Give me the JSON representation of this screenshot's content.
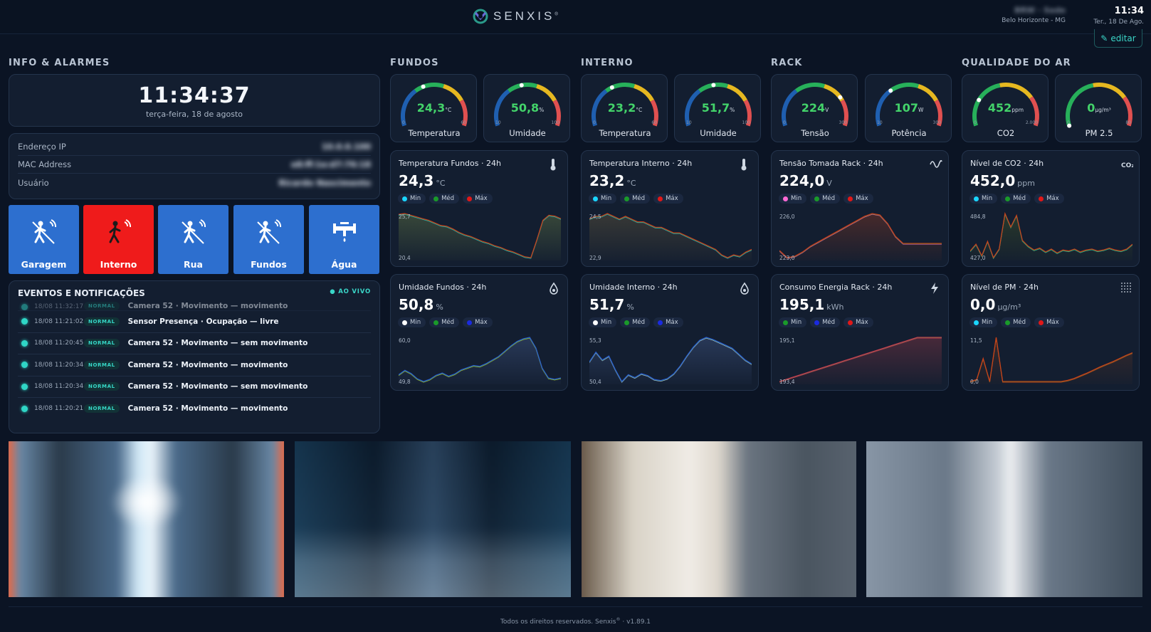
{
  "header": {
    "brand": "SENXIS",
    "brand_mark": "®",
    "site_name": "BRW - Sede",
    "site_location": "Belo Horizonte - MG",
    "time": "11:34",
    "date": "Ter., 18 De Ago.",
    "edit_label": "editar"
  },
  "sections": {
    "info": "INFO & ALARMES",
    "fundos": "FUNDOS",
    "interno": "INTERNO",
    "rack": "RACK",
    "air": "QUALIDADE DO AR"
  },
  "clock": {
    "time": "11:34:37",
    "date": "terça-feira, 18 de agosto"
  },
  "info_rows": [
    {
      "label": "Endereço IP",
      "value": "10.0.0.100"
    },
    {
      "label": "MAC Address",
      "value": "e8:ff:1e:d7:76:18"
    },
    {
      "label": "Usuário",
      "value": "Ricardo Nascimento"
    }
  ],
  "sensors": [
    {
      "label": "Garagem",
      "state": "normal",
      "icon": "motion-sensor-icon"
    },
    {
      "label": "Interno",
      "state": "alarm",
      "icon": "motion-sensor-icon"
    },
    {
      "label": "Rua",
      "state": "normal",
      "icon": "motion-sensor-icon"
    },
    {
      "label": "Fundos",
      "state": "normal",
      "icon": "motion-sensor-icon"
    },
    {
      "label": "Água",
      "state": "normal",
      "icon": "water-valve-icon"
    }
  ],
  "events": {
    "title": "EVENTOS E NOTIFICAÇÕES",
    "live": "AO VIVO",
    "items": [
      {
        "ts": "18/08 11:32:17",
        "badge": "NORMAL",
        "msg": "Camera 52 · Movimento — movimento"
      },
      {
        "ts": "18/08 11:21:02",
        "badge": "NORMAL",
        "msg": "Sensor Presença · Ocupação — livre"
      },
      {
        "ts": "18/08 11:20:45",
        "badge": "NORMAL",
        "msg": "Camera 52 · Movimento — sem movimento"
      },
      {
        "ts": "18/08 11:20:34",
        "badge": "NORMAL",
        "msg": "Camera 52 · Movimento — movimento"
      },
      {
        "ts": "18/08 11:20:34",
        "badge": "NORMAL",
        "msg": "Camera 52 · Movimento — sem movimento"
      },
      {
        "ts": "18/08 11:20:21",
        "badge": "NORMAL",
        "msg": "Camera 52 · Movimento — movimento"
      }
    ]
  },
  "gauges": [
    {
      "value": "24,3",
      "unit": "°C",
      "min": "0",
      "max": "60",
      "label": "Temperatura",
      "fraction": 0.405
    },
    {
      "value": "50,8",
      "unit": "%",
      "min": "10",
      "max": "100",
      "label": "Umidade",
      "fraction": 0.45
    },
    {
      "value": "23,2",
      "unit": "°C",
      "min": "0",
      "max": "60",
      "label": "Temperatura",
      "fraction": 0.387
    },
    {
      "value": "51,7",
      "unit": "%",
      "min": "10",
      "max": "100",
      "label": "Umidade",
      "fraction": 0.46
    },
    {
      "value": "224",
      "unit": "V",
      "min": "0",
      "max": "300",
      "label": "Tensão",
      "fraction": 0.747
    },
    {
      "value": "107",
      "unit": "W",
      "min": "10",
      "max": "300",
      "label": "Potência",
      "fraction": 0.334
    },
    {
      "value": "452",
      "unit": "ppm",
      "min": "0",
      "max": "2.000",
      "label": "CO2",
      "fraction": 0.226
    },
    {
      "value": "0",
      "unit": "µg/m³",
      "min": "0",
      "max": "80",
      "label": "PM 2.5",
      "fraction": 0.0
    }
  ],
  "cards": [
    {
      "title": "Temperatura Fundos · 24h",
      "value": "24,3",
      "unit": "°C",
      "icon": "thermometer-icon",
      "ymax": "25,7",
      "ymin": "20,4",
      "legend": [
        {
          "label": "Min",
          "color": "#1ad6ff"
        },
        {
          "label": "Méd",
          "color": "#1a9a2a"
        },
        {
          "label": "Máx",
          "color": "#e01818"
        }
      ],
      "series_colors": [
        "#1ad6ff",
        "#1a9a2a",
        "#e03a18"
      ],
      "fill": "#3a4a3a",
      "values": [
        25.5,
        25.6,
        25.4,
        25.2,
        25.0,
        24.8,
        24.5,
        24.2,
        24.1,
        23.8,
        23.4,
        23.1,
        22.9,
        22.6,
        22.3,
        22.1,
        21.8,
        21.6,
        21.3,
        21.1,
        20.8,
        20.5,
        20.4,
        22.5,
        24.8,
        25.4,
        25.3,
        25.0
      ]
    },
    {
      "title": "Temperatura Interno · 24h",
      "value": "23,2",
      "unit": "°C",
      "icon": "thermometer-icon",
      "ymax": "24,5",
      "ymin": "22,9",
      "legend": [
        {
          "label": "Min",
          "color": "#1ad6ff"
        },
        {
          "label": "Méd",
          "color": "#1a9a2a"
        },
        {
          "label": "Máx",
          "color": "#e01818"
        }
      ],
      "series_colors": [
        "#1ad6ff",
        "#1a9a2a",
        "#e03a18"
      ],
      "fill": "#3a3a36",
      "values": [
        24.3,
        24.4,
        24.4,
        24.5,
        24.4,
        24.3,
        24.4,
        24.3,
        24.2,
        24.2,
        24.1,
        24.0,
        24.0,
        23.9,
        23.8,
        23.8,
        23.7,
        23.6,
        23.5,
        23.4,
        23.3,
        23.2,
        23.0,
        22.9,
        23.0,
        22.95,
        23.1,
        23.2
      ]
    },
    {
      "title": "Tensão Tomada Rack · 24h",
      "value": "224,0",
      "unit": "V",
      "icon": "sine-wave-icon",
      "ymax": "226,0",
      "ymin": "223,0",
      "legend": [
        {
          "label": "Min",
          "color": "#ff6ad5"
        },
        {
          "label": "Méd",
          "color": "#1a9a2a"
        },
        {
          "label": "Máx",
          "color": "#e01818"
        }
      ],
      "series_colors": [
        "#ff6ad5",
        "#1a9a2a",
        "#e03a18"
      ],
      "fill": "#4a2a2a",
      "values": [
        223.5,
        223.0,
        223.1,
        223.4,
        223.8,
        224.1,
        224.4,
        224.7,
        225.0,
        225.3,
        225.6,
        225.9,
        226.1,
        226.0,
        225.4,
        224.5,
        224.0,
        224.0,
        224.0,
        224.0,
        224.0,
        224.0
      ]
    },
    {
      "title": "Nível de CO2 · 24h",
      "value": "452,0",
      "unit": "ppm",
      "icon": "co2-icon",
      "ymax": "484,8",
      "ymin": "427,0",
      "legend": [
        {
          "label": "Min",
          "color": "#1ad6ff"
        },
        {
          "label": "Méd",
          "color": "#1a9a2a"
        },
        {
          "label": "Máx",
          "color": "#e01818"
        }
      ],
      "series_colors": [
        "#2fd6c6",
        "#1a9a2a",
        "#e03a18"
      ],
      "fill": "#2a3a2a",
      "values": [
        445,
        452,
        440,
        455,
        438,
        447,
        484,
        470,
        482,
        456,
        450,
        446,
        448,
        444,
        447,
        443,
        446,
        445,
        447,
        444,
        446,
        447,
        445,
        446,
        448,
        446,
        445,
        447,
        452
      ]
    },
    {
      "title": "Umidade Fundos · 24h",
      "value": "50,8",
      "unit": "%",
      "icon": "drop-icon",
      "ymax": "60,0",
      "ymin": "49,8",
      "legend": [
        {
          "label": "Min",
          "color": "#ffffff"
        },
        {
          "label": "Méd",
          "color": "#1a9a2a"
        },
        {
          "label": "Máx",
          "color": "#1a2ae0"
        }
      ],
      "series_colors": [
        "#e6e61a",
        "#1a9a2a",
        "#2a5ae8"
      ],
      "fill": "#2a3a5a",
      "values": [
        51.5,
        52.5,
        51.8,
        50.6,
        50.0,
        50.5,
        51.4,
        51.9,
        51.2,
        51.7,
        52.6,
        53.1,
        53.6,
        53.4,
        54.0,
        54.8,
        55.6,
        56.8,
        58.0,
        59.0,
        59.6,
        59.9,
        57.5,
        53.0,
        50.8,
        50.5,
        50.8
      ]
    },
    {
      "title": "Umidade Interno · 24h",
      "value": "51,7",
      "unit": "%",
      "icon": "drop-icon",
      "ymax": "55,3",
      "ymin": "50,4",
      "legend": [
        {
          "label": "Min",
          "color": "#ffffff"
        },
        {
          "label": "Méd",
          "color": "#1a9a2a"
        },
        {
          "label": "Máx",
          "color": "#1a2ae0"
        }
      ],
      "series_colors": [
        "#e6e6ff",
        "#1a9a2a",
        "#2a5ae8"
      ],
      "fill": "#2a3a5a",
      "values": [
        52.8,
        53.8,
        53.0,
        53.4,
        52.0,
        50.8,
        51.5,
        51.2,
        51.6,
        51.4,
        51.0,
        50.9,
        51.1,
        51.6,
        52.4,
        53.4,
        54.3,
        55.0,
        55.3,
        55.1,
        54.8,
        54.5,
        54.2,
        53.6,
        53.0,
        52.6
      ]
    },
    {
      "title": "Consumo Energia Rack · 24h",
      "value": "195,1",
      "unit": "kWh",
      "icon": "bolt-icon",
      "ymax": "195,1",
      "ymin": "193,4",
      "legend": [
        {
          "label": "Min",
          "color": "#1a9a2a"
        },
        {
          "label": "Méd",
          "color": "#1a2ae0"
        },
        {
          "label": "Máx",
          "color": "#e01818"
        }
      ],
      "series_colors": [
        "#e0285a",
        "#1a9a2a",
        "#e03a58"
      ],
      "fill": "#4a2a3a",
      "values": [
        193.4,
        193.5,
        193.6,
        193.7,
        193.8,
        193.9,
        194.0,
        194.1,
        194.2,
        194.3,
        194.4,
        194.5,
        194.6,
        194.7,
        194.8,
        194.9,
        195.0,
        195.1,
        195.1,
        195.1,
        195.1
      ]
    },
    {
      "title": "Nível de PM · 24h",
      "value": "0,0",
      "unit": "µg/m³",
      "icon": "particles-icon",
      "ymax": "11,5",
      "ymin": "0,0",
      "legend": [
        {
          "label": "Min",
          "color": "#1ad6ff"
        },
        {
          "label": "Méd",
          "color": "#1a9a2a"
        },
        {
          "label": "Máx",
          "color": "#e01818"
        }
      ],
      "series_colors": [
        "#e03a18",
        "#1a9a2a",
        "#e03a18"
      ],
      "fill": "#3a2a2a",
      "values": [
        0,
        0.5,
        6,
        0,
        11.5,
        0,
        0,
        0,
        0,
        0,
        0,
        0,
        0,
        0,
        0,
        0.3,
        0.8,
        1.5,
        2.2,
        3.0,
        3.8,
        4.5,
        5.2,
        6.0,
        6.8,
        7.5
      ]
    }
  ],
  "cameras": [
    {
      "name": "camera-1"
    },
    {
      "name": "camera-2"
    },
    {
      "name": "camera-3"
    },
    {
      "name": "camera-4"
    }
  ],
  "footer": {
    "text": "Todos os direitos reservados. Senxis",
    "mark": "®",
    "version": " · v1.89.1"
  }
}
